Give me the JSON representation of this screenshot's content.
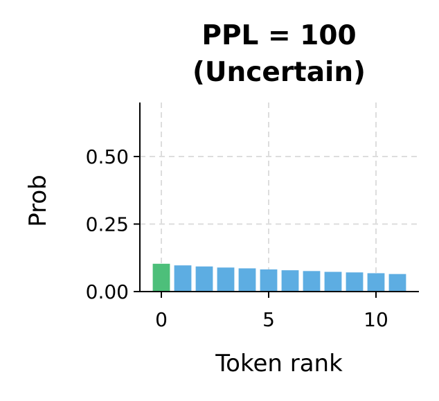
{
  "chart_data": {
    "type": "bar",
    "title": [
      "PPL = 100",
      "(Uncertain)"
    ],
    "xlabel": "Token rank",
    "ylabel": "Prob",
    "x": [
      0,
      1,
      2,
      3,
      4,
      5,
      6,
      7,
      8,
      9,
      10,
      11
    ],
    "values": [
      0.103,
      0.097,
      0.093,
      0.089,
      0.086,
      0.082,
      0.079,
      0.076,
      0.073,
      0.071,
      0.068,
      0.065
    ],
    "bar_colors": [
      "#4dbf7a",
      "#5dade2",
      "#5dade2",
      "#5dade2",
      "#5dade2",
      "#5dade2",
      "#5dade2",
      "#5dade2",
      "#5dade2",
      "#5dade2",
      "#5dade2",
      "#5dade2"
    ],
    "xlim": [
      -1.0,
      12.0
    ],
    "ylim": [
      0,
      0.7
    ],
    "xticks": [
      0,
      5,
      10
    ],
    "xtick_labels": [
      "0",
      "5",
      "10"
    ],
    "yticks": [
      0,
      0.25,
      0.5
    ],
    "ytick_labels": [
      "0.00",
      "0.25",
      "0.50"
    ],
    "grid": true,
    "grid_style": "dashed",
    "legend": "none"
  }
}
